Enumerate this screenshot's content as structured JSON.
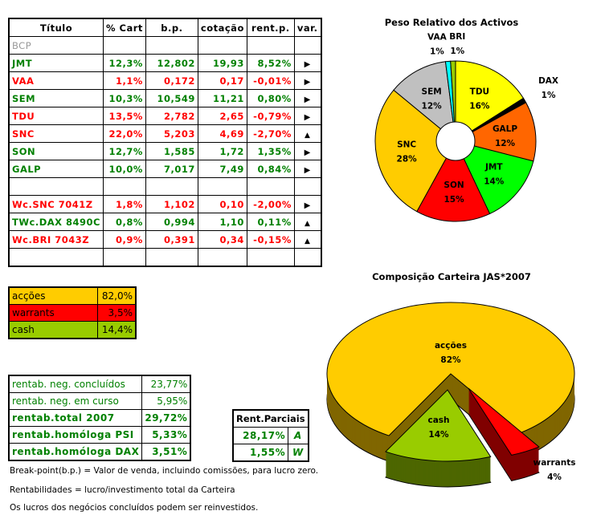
{
  "main_table": {
    "headers": [
      "Título",
      "% Cart",
      "b.p.",
      "cotação",
      "rent.p.",
      "var."
    ],
    "rows": [
      {
        "titulo": "BCP",
        "cart": "",
        "bp": "",
        "cot": "",
        "rent": "",
        "var": "",
        "color": "gray"
      },
      {
        "titulo": "JMT",
        "cart": "12,3%",
        "bp": "12,802",
        "cot": "19,93",
        "rent": "8,52%",
        "var": "right",
        "color": "green"
      },
      {
        "titulo": "VAA",
        "cart": "1,1%",
        "bp": "0,172",
        "cot": "0,17",
        "rent": "-0,01%",
        "var": "right",
        "color": "red"
      },
      {
        "titulo": "SEM",
        "cart": "10,3%",
        "bp": "10,549",
        "cot": "11,21",
        "rent": "0,80%",
        "var": "right",
        "color": "green"
      },
      {
        "titulo": "TDU",
        "cart": "13,5%",
        "bp": "2,782",
        "cot": "2,65",
        "rent": "-0,79%",
        "var": "right",
        "color": "red"
      },
      {
        "titulo": "SNC",
        "cart": "22,0%",
        "bp": "5,203",
        "cot": "4,69",
        "rent": "-2,70%",
        "var": "up",
        "color": "red"
      },
      {
        "titulo": "SON",
        "cart": "12,7%",
        "bp": "1,585",
        "cot": "1,72",
        "rent": "1,35%",
        "var": "right",
        "color": "green"
      },
      {
        "titulo": "GALP",
        "cart": "10,0%",
        "bp": "7,017",
        "cot": "7,49",
        "rent": "0,84%",
        "var": "right",
        "color": "green"
      },
      {
        "titulo": "",
        "cart": "",
        "bp": "",
        "cot": "",
        "rent": "",
        "var": "",
        "color": "green"
      },
      {
        "titulo": "Wc.SNC 7041Z",
        "cart": "1,8%",
        "bp": "1,102",
        "cot": "0,10",
        "rent": "-2,00%",
        "var": "right",
        "color": "red"
      },
      {
        "titulo": "TWc.DAX 8490C",
        "cart": "0,8%",
        "bp": "0,994",
        "cot": "1,10",
        "rent": "0,11%",
        "var": "up",
        "color": "green"
      },
      {
        "titulo": "Wc.BRI 7043Z",
        "cart": "0,9%",
        "bp": "0,391",
        "cot": "0,34",
        "rent": "-0,15%",
        "var": "up",
        "color": "red"
      },
      {
        "titulo": "",
        "cart": "",
        "bp": "",
        "cot": "",
        "rent": "",
        "var": "",
        "color": "green"
      }
    ]
  },
  "allocation": [
    {
      "label": "acções",
      "value": "82,0%",
      "color": "#ffcc00"
    },
    {
      "label": "warrants",
      "value": "3,5%",
      "color": "#ff0000"
    },
    {
      "label": "cash",
      "value": "14,4%",
      "color": "#99cc00"
    }
  ],
  "rent": [
    {
      "label": "rentab. neg. concluídos",
      "value": "23,77%",
      "bold": false
    },
    {
      "label": "rentab. neg. em curso",
      "value": "5,95%",
      "bold": false
    },
    {
      "label": "rentab.total 2007",
      "value": "29,72%",
      "bold": true
    },
    {
      "label": "rentab.homóloga PSI",
      "value": "5,33%",
      "bold": true
    },
    {
      "label": "rentab.homóloga DAX",
      "value": "3,51%",
      "bold": true
    }
  ],
  "parciais": {
    "title": "Rent.Parciais",
    "rows": [
      {
        "value": "28,17%",
        "tag": "A"
      },
      {
        "value": "1,55%",
        "tag": "W"
      }
    ]
  },
  "notes": [
    "Break-point(b.p.) = Valor de venda, incluindo comissões, para lucro zero.",
    "Rentabilidades = lucro/investimento total da Carteira",
    "Os lucros dos negócios concluídos podem ser reinvestidos."
  ],
  "chart_data": [
    {
      "type": "pie",
      "title": "Peso Relativo dos Activos",
      "slices": [
        {
          "label": "TDU",
          "value": 16,
          "color": "#ffff00"
        },
        {
          "label": "DAX",
          "value": 1,
          "color": "#000000"
        },
        {
          "label": "GALP",
          "value": 12,
          "color": "#ff6600"
        },
        {
          "label": "JMT",
          "value": 14,
          "color": "#00ff00"
        },
        {
          "label": "SON",
          "value": 15,
          "color": "#ff0000"
        },
        {
          "label": "SNC",
          "value": 28,
          "color": "#ffcc00"
        },
        {
          "label": "SEM",
          "value": 12,
          "color": "#c0c0c0"
        },
        {
          "label": "VAA",
          "value": 1,
          "color": "#00ffff"
        },
        {
          "label": "BRI",
          "value": 1,
          "color": "#99cc00"
        }
      ]
    },
    {
      "type": "pie",
      "title": "Composição Carteira JAS*2007",
      "style": "3d-exploded",
      "slices": [
        {
          "label": "acções",
          "value": 82,
          "color": "#ffcc00",
          "side": "#806600"
        },
        {
          "label": "warrants",
          "value": 4,
          "color": "#ff0000",
          "side": "#800000"
        },
        {
          "label": "cash",
          "value": 14,
          "color": "#99cc00",
          "side": "#4d6600"
        }
      ]
    }
  ]
}
